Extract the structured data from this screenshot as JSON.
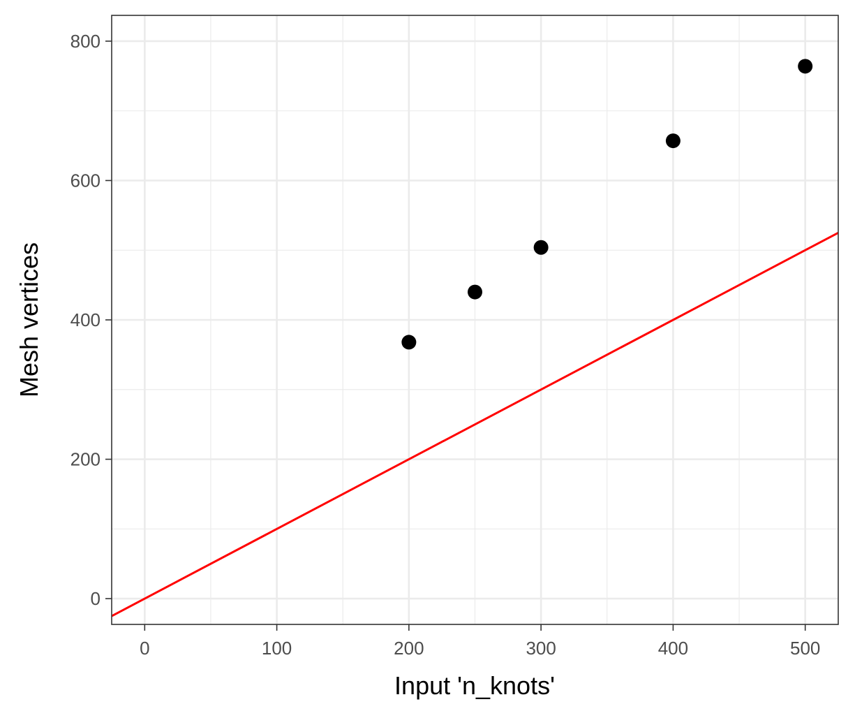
{
  "chart_data": {
    "type": "scatter",
    "title": "",
    "xlabel": "Input 'n_knots'",
    "ylabel": "Mesh vertices",
    "xlim": [
      -25,
      525
    ],
    "ylim": [
      -37,
      837
    ],
    "x_ticks": [
      0,
      100,
      200,
      300,
      400,
      500
    ],
    "y_ticks": [
      0,
      200,
      400,
      600,
      800
    ],
    "x_tick_labels": [
      "0",
      "100",
      "200",
      "300",
      "400",
      "500"
    ],
    "y_tick_labels": [
      "0",
      "200",
      "400",
      "600",
      "800"
    ],
    "grid": true,
    "legend": "none",
    "series": [
      {
        "type": "scatter",
        "color": "#000000",
        "points": [
          {
            "x": 200,
            "y": 368
          },
          {
            "x": 250,
            "y": 440
          },
          {
            "x": 300,
            "y": 504
          },
          {
            "x": 400,
            "y": 657
          },
          {
            "x": 500,
            "y": 764
          }
        ]
      },
      {
        "type": "reference-line",
        "color": "#ff0000",
        "intercept": 0,
        "slope": 1
      }
    ]
  }
}
